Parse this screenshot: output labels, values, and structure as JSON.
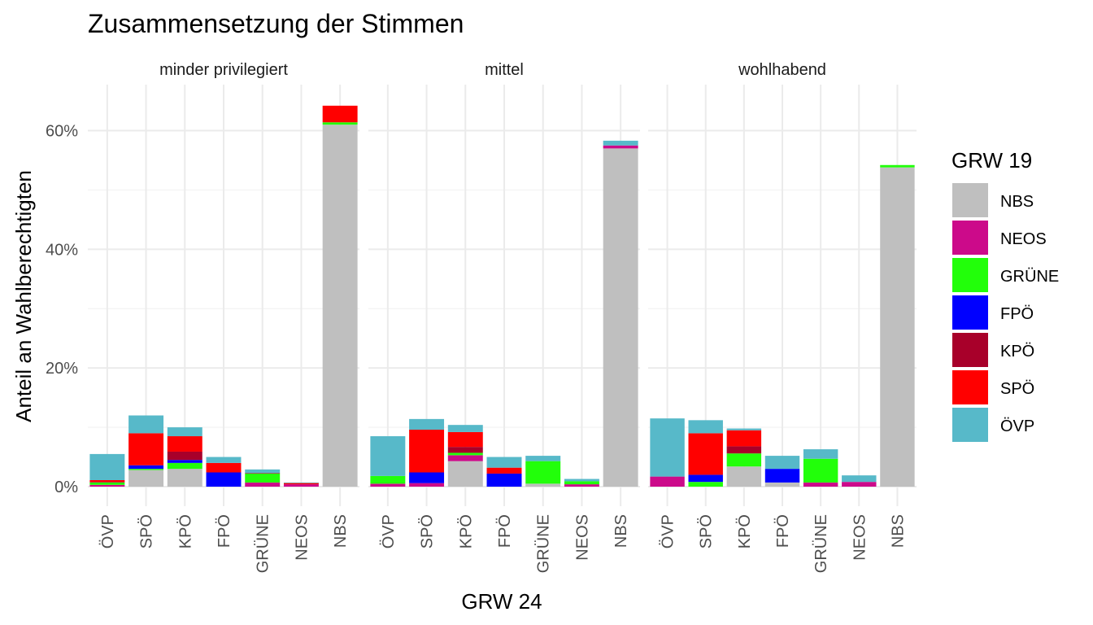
{
  "chart_data": {
    "type": "bar",
    "stacked": true,
    "title": "Zusammensetzung der Stimmen",
    "xlabel": "GRW 24",
    "ylabel": "Anteil an Wahlberechtigten",
    "ylim": [
      0,
      0.66
    ],
    "y_ticks": [
      0,
      0.2,
      0.4,
      0.6
    ],
    "y_tick_labels": [
      "0%",
      "20%",
      "40%",
      "60%"
    ],
    "categories": [
      "ÖVP",
      "SPÖ",
      "KPÖ",
      "FPÖ",
      "GRÜNE",
      "NEOS",
      "NBS"
    ],
    "legend": {
      "title": "GRW 19",
      "position": "right",
      "entries": [
        "NBS",
        "NEOS",
        "GRÜNE",
        "FPÖ",
        "KPÖ",
        "SPÖ",
        "ÖVP"
      ]
    },
    "colors": {
      "NBS": "#bfbfbf",
      "NEOS": "#cc0a8a",
      "GRÜNE": "#22ff0a",
      "FPÖ": "#0000ff",
      "KPÖ": "#a8002a",
      "SPÖ": "#ff0000",
      "ÖVP": "#57b9c9"
    },
    "stack_order": [
      "NBS",
      "NEOS",
      "GRÜNE",
      "FPÖ",
      "KPÖ",
      "SPÖ",
      "ÖVP"
    ],
    "grid": true,
    "panels": [
      {
        "name": "minder privilegiert",
        "bars": {
          "ÖVP": {
            "NBS": 0.0,
            "NEOS": 0.003,
            "GRÜNE": 0.004,
            "FPÖ": 0.0,
            "KPÖ": 0.001,
            "SPÖ": 0.003,
            "ÖVP": 0.044
          },
          "SPÖ": {
            "NBS": 0.028,
            "NEOS": 0.0,
            "GRÜNE": 0.002,
            "FPÖ": 0.006,
            "KPÖ": 0.0,
            "SPÖ": 0.054,
            "ÖVP": 0.03
          },
          "KPÖ": {
            "NBS": 0.03,
            "NEOS": 0.0,
            "GRÜNE": 0.01,
            "FPÖ": 0.005,
            "KPÖ": 0.014,
            "SPÖ": 0.026,
            "ÖVP": 0.015
          },
          "FPÖ": {
            "NBS": 0.0,
            "NEOS": 0.0,
            "GRÜNE": 0.0,
            "FPÖ": 0.024,
            "KPÖ": 0.0,
            "SPÖ": 0.016,
            "ÖVP": 0.01
          },
          "GRÜNE": {
            "NBS": 0.0,
            "NEOS": 0.007,
            "GRÜNE": 0.015,
            "FPÖ": 0.0,
            "KPÖ": 0.001,
            "SPÖ": 0.0,
            "ÖVP": 0.006
          },
          "NEOS": {
            "NBS": 0.0,
            "NEOS": 0.004,
            "GRÜNE": 0.0,
            "FPÖ": 0.0,
            "KPÖ": 0.0,
            "SPÖ": 0.002,
            "ÖVP": 0.001
          },
          "NBS": {
            "NBS": 0.61,
            "NEOS": 0.0,
            "GRÜNE": 0.004,
            "FPÖ": 0.0,
            "KPÖ": 0.0,
            "SPÖ": 0.028,
            "ÖVP": 0.0
          }
        }
      },
      {
        "name": "mittel",
        "bars": {
          "ÖVP": {
            "NBS": 0.0,
            "NEOS": 0.005,
            "GRÜNE": 0.013,
            "FPÖ": 0.0,
            "KPÖ": 0.0,
            "SPÖ": 0.0,
            "ÖVP": 0.067
          },
          "SPÖ": {
            "NBS": 0.0,
            "NEOS": 0.006,
            "GRÜNE": 0.0,
            "FPÖ": 0.018,
            "KPÖ": 0.0,
            "SPÖ": 0.072,
            "ÖVP": 0.018
          },
          "KPÖ": {
            "NBS": 0.043,
            "NEOS": 0.01,
            "GRÜNE": 0.004,
            "FPÖ": 0.0,
            "KPÖ": 0.01,
            "SPÖ": 0.025,
            "ÖVP": 0.012
          },
          "FPÖ": {
            "NBS": 0.0,
            "NEOS": 0.0,
            "GRÜNE": 0.0,
            "FPÖ": 0.022,
            "KPÖ": 0.0,
            "SPÖ": 0.01,
            "ÖVP": 0.018
          },
          "GRÜNE": {
            "NBS": 0.005,
            "NEOS": 0.0,
            "GRÜNE": 0.038,
            "FPÖ": 0.0,
            "KPÖ": 0.0,
            "SPÖ": 0.0,
            "ÖVP": 0.009
          },
          "NEOS": {
            "NBS": 0.0,
            "NEOS": 0.004,
            "GRÜNE": 0.005,
            "FPÖ": 0.0,
            "KPÖ": 0.0,
            "SPÖ": 0.0,
            "ÖVP": 0.004
          },
          "NBS": {
            "NBS": 0.57,
            "NEOS": 0.005,
            "GRÜNE": 0.0,
            "FPÖ": 0.0,
            "KPÖ": 0.0,
            "SPÖ": 0.0,
            "ÖVP": 0.008
          }
        }
      },
      {
        "name": "wohlhabend",
        "bars": {
          "ÖVP": {
            "NBS": 0.0,
            "NEOS": 0.017,
            "GRÜNE": 0.0,
            "FPÖ": 0.0,
            "KPÖ": 0.0,
            "SPÖ": 0.0,
            "ÖVP": 0.098
          },
          "SPÖ": {
            "NBS": 0.0,
            "NEOS": 0.0,
            "GRÜNE": 0.008,
            "FPÖ": 0.012,
            "KPÖ": 0.0,
            "SPÖ": 0.07,
            "ÖVP": 0.022
          },
          "KPÖ": {
            "NBS": 0.034,
            "NEOS": 0.0,
            "GRÜNE": 0.022,
            "FPÖ": 0.0,
            "KPÖ": 0.012,
            "SPÖ": 0.027,
            "ÖVP": 0.003
          },
          "FPÖ": {
            "NBS": 0.007,
            "NEOS": 0.0,
            "GRÜNE": 0.0,
            "FPÖ": 0.023,
            "KPÖ": 0.0,
            "SPÖ": 0.0,
            "ÖVP": 0.022
          },
          "GRÜNE": {
            "NBS": 0.0,
            "NEOS": 0.007,
            "GRÜNE": 0.04,
            "FPÖ": 0.0,
            "KPÖ": 0.0,
            "SPÖ": 0.0,
            "ÖVP": 0.016
          },
          "NEOS": {
            "NBS": 0.0,
            "NEOS": 0.008,
            "GRÜNE": 0.0,
            "FPÖ": 0.0,
            "KPÖ": 0.0,
            "SPÖ": 0.0,
            "ÖVP": 0.011
          },
          "NBS": {
            "NBS": 0.538,
            "NEOS": 0.0,
            "GRÜNE": 0.004,
            "FPÖ": 0.0,
            "KPÖ": 0.0,
            "SPÖ": 0.0,
            "ÖVP": 0.0
          }
        }
      }
    ]
  }
}
